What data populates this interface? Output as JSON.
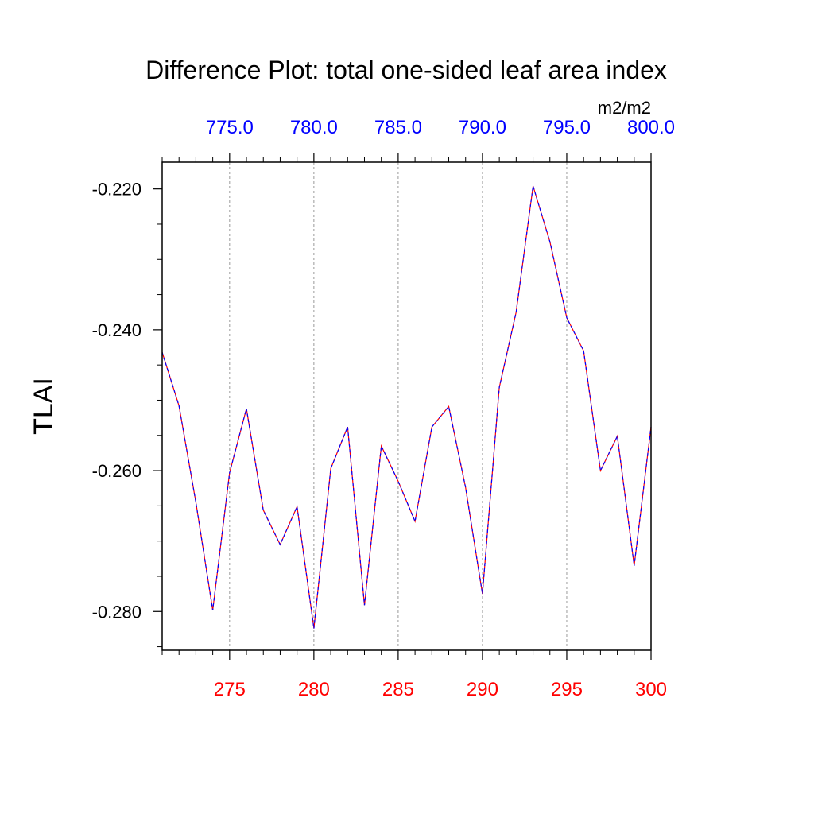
{
  "chart_data": {
    "type": "line",
    "title": "Difference Plot: total one-sided leaf area index",
    "units": "m2/m2",
    "ylabel": "TLAI",
    "xlim": [
      271,
      300
    ],
    "ylim": [
      -0.2855,
      -0.2162
    ],
    "y_ticks": [
      "-0.220",
      "-0.240",
      "-0.260",
      "-0.280"
    ],
    "y_tick_values": [
      -0.22,
      -0.24,
      -0.26,
      -0.28
    ],
    "x_ticks_bottom": [
      "275",
      "280",
      "285",
      "290",
      "295",
      "300"
    ],
    "x_tick_values_bottom": [
      275,
      280,
      285,
      290,
      295,
      300
    ],
    "x_ticks_top": [
      "775.0",
      "780.0",
      "785.0",
      "790.0",
      "795.0",
      "800.0"
    ],
    "bottom_tick_color": "#ff0000",
    "top_tick_color": "#0000ff",
    "grid": "dotted vertical lines at major x ticks",
    "series": [
      {
        "color_a": "#ff0000",
        "color_b": "#0000ff",
        "x": [
          271,
          272,
          273,
          274,
          275,
          276,
          277,
          278,
          279,
          280,
          281,
          282,
          283,
          284,
          285,
          286,
          287,
          288,
          289,
          290,
          291,
          292,
          293,
          294,
          295,
          296,
          297,
          298,
          299,
          300
        ],
        "y": [
          -0.2432,
          -0.2508,
          -0.2645,
          -0.2798,
          -0.2603,
          -0.2512,
          -0.2656,
          -0.2705,
          -0.2651,
          -0.2824,
          -0.2597,
          -0.2538,
          -0.2791,
          -0.2565,
          -0.2615,
          -0.2672,
          -0.2538,
          -0.2509,
          -0.2624,
          -0.2775,
          -0.2482,
          -0.2375,
          -0.2196,
          -0.2275,
          -0.2383,
          -0.243,
          -0.26,
          -0.2551,
          -0.2735,
          -0.2538
        ]
      }
    ]
  }
}
